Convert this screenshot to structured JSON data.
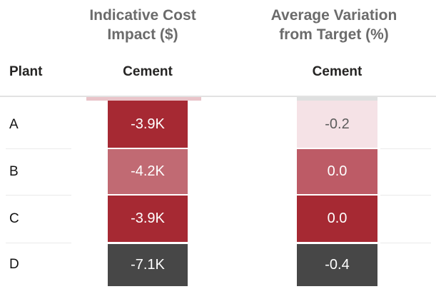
{
  "visual": {
    "left_group_title_line1": "Indicative Cost",
    "left_group_title_line2": "Impact ($)",
    "right_group_title_line1": "Average Variation",
    "right_group_title_line2": "from Target (%)",
    "plant_header": "Plant",
    "left_column_header": "Cement",
    "right_column_header": "Cement"
  },
  "partial_row": {
    "left_bg": "#E9C4C9",
    "right_bg": "#DFE0E0"
  },
  "rows": [
    {
      "label": "A",
      "cost": {
        "text": "-3.9K",
        "bg": "#A62933",
        "fg": "#FFFFFF"
      },
      "variation": {
        "text": "-0.2",
        "bg": "#F5E2E6",
        "fg": "#5C5C5C"
      }
    },
    {
      "label": "B",
      "cost": {
        "text": "-4.2K",
        "bg": "#C16A73",
        "fg": "#FFFFFF"
      },
      "variation": {
        "text": "0.0",
        "bg": "#BD5B66",
        "fg": "#FFFFFF"
      }
    },
    {
      "label": "C",
      "cost": {
        "text": "-3.9K",
        "bg": "#A62933",
        "fg": "#FFFFFF"
      },
      "variation": {
        "text": "0.0",
        "bg": "#A62933",
        "fg": "#FFFFFF"
      }
    },
    {
      "label": "D",
      "cost": {
        "text": "-7.1K",
        "bg": "#474747",
        "fg": "#FFFFFF"
      },
      "variation": {
        "text": "-0.4",
        "bg": "#474747",
        "fg": "#FFFFFF"
      }
    }
  ],
  "colors": {
    "dark_red": "#A62933",
    "medium_red_left": "#C16A73",
    "medium_red_right": "#BD5B66",
    "light_pink": "#F5E2E6",
    "dark_gray": "#474747",
    "title_gray": "#6B6B6B",
    "separator_gray": "#EAEAEA"
  },
  "chart_data": {
    "type": "table",
    "title": "",
    "column_groups": [
      {
        "label": "Indicative Cost Impact ($)",
        "columns": [
          "Cement"
        ]
      },
      {
        "label": "Average Variation from Target (%)",
        "columns": [
          "Cement"
        ]
      }
    ],
    "row_header": "Plant",
    "rows": [
      {
        "plant": "A",
        "indicative_cost_impact_usd": -3900,
        "cost_label": "-3.9K",
        "avg_variation_from_target_pct": -0.2,
        "variation_label": "-0.2"
      },
      {
        "plant": "B",
        "indicative_cost_impact_usd": -4200,
        "cost_label": "-4.2K",
        "avg_variation_from_target_pct": 0.0,
        "variation_label": "0.0"
      },
      {
        "plant": "C",
        "indicative_cost_impact_usd": -3900,
        "cost_label": "-3.9K",
        "avg_variation_from_target_pct": 0.0,
        "variation_label": "0.0"
      },
      {
        "plant": "D",
        "indicative_cost_impact_usd": -7100,
        "cost_label": "-7.1K",
        "avg_variation_from_target_pct": -0.4,
        "variation_label": "-0.4"
      }
    ],
    "legend": "none",
    "grid": "off",
    "notes": "Matrix visual with conditional background formatting: red gradient for cost/variation, dark gray for plant D"
  }
}
